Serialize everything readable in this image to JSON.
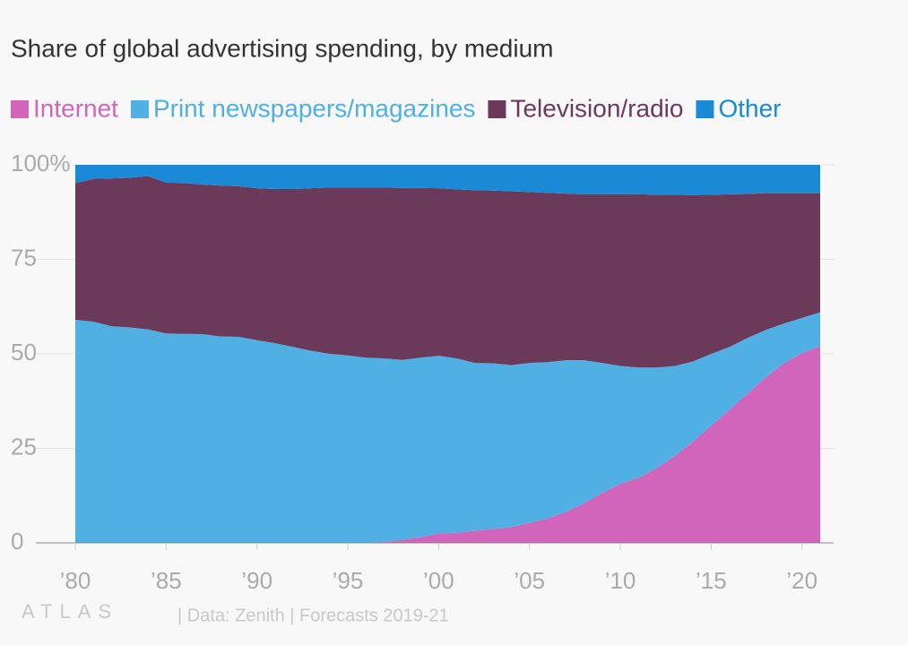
{
  "chart_data": {
    "type": "stacked-area",
    "title": "Share of global advertising spending, by medium",
    "x": [
      1980,
      1981,
      1982,
      1983,
      1984,
      1985,
      1986,
      1987,
      1988,
      1989,
      1990,
      1991,
      1992,
      1993,
      1994,
      1995,
      1996,
      1997,
      1998,
      1999,
      2000,
      2001,
      2002,
      2003,
      2004,
      2005,
      2006,
      2007,
      2008,
      2009,
      2010,
      2011,
      2012,
      2013,
      2014,
      2015,
      2016,
      2017,
      2018,
      2019,
      2020,
      2021
    ],
    "series": [
      {
        "name": "Internet",
        "color": "#d065bb",
        "values": [
          0,
          0,
          0,
          0,
          0,
          0,
          0,
          0,
          0,
          0,
          0,
          0,
          0,
          0,
          0,
          0,
          0,
          0.3,
          0.8,
          1.5,
          2.5,
          2.7,
          3.2,
          3.7,
          4.2,
          5.3,
          6.5,
          8.2,
          10.5,
          13.2,
          15.6,
          17.2,
          19.8,
          23,
          26.8,
          31,
          35.2,
          39.5,
          43.8,
          47.5,
          50.2,
          52
        ]
      },
      {
        "name": "Print newspapers/magazines",
        "color": "#50b0e4",
        "values": [
          59,
          58.5,
          57.3,
          57,
          56.5,
          55.4,
          55.3,
          55.2,
          54.6,
          54.5,
          53.6,
          52.8,
          51.8,
          50.8,
          50,
          49.6,
          49,
          48.5,
          47.6,
          47.5,
          47,
          46.1,
          44.4,
          43.8,
          42.8,
          42.3,
          41.3,
          40.1,
          37.8,
          34.4,
          31.2,
          29.2,
          26.6,
          23.8,
          21.2,
          19,
          16.6,
          14.7,
          12.5,
          10.5,
          9.3,
          9
        ]
      },
      {
        "name": "Television/radio",
        "color": "#6b3a5a",
        "values": [
          36.2,
          37.8,
          39.1,
          39.6,
          40.5,
          39.9,
          39.9,
          39.6,
          39.9,
          39.8,
          40.2,
          40.8,
          41.8,
          43,
          44,
          44.4,
          45,
          45.2,
          45.5,
          44.9,
          44.3,
          44.7,
          45.7,
          45.7,
          46,
          45.2,
          44.8,
          44.1,
          43.9,
          44.6,
          45.4,
          45.8,
          45.7,
          45.3,
          44,
          42.1,
          40.4,
          38.1,
          36.2,
          34.5,
          33,
          31.5
        ]
      },
      {
        "name": "Other",
        "color": "#1a8ad6",
        "values": [
          4.8,
          3.7,
          3.6,
          3.4,
          3,
          4.7,
          4.8,
          5.2,
          5.5,
          5.7,
          6.2,
          6.4,
          6.4,
          6.2,
          6,
          6,
          6,
          6,
          6.1,
          6.1,
          6.2,
          6.5,
          6.7,
          6.8,
          7,
          7.2,
          7.4,
          7.6,
          7.8,
          7.8,
          7.8,
          7.8,
          7.9,
          7.9,
          8,
          7.9,
          7.8,
          7.7,
          7.5,
          7.5,
          7.5,
          7.5
        ]
      }
    ],
    "xlim": [
      1980,
      2021
    ],
    "xticks": [
      {
        "value": 1980,
        "label": "’80"
      },
      {
        "value": 1985,
        "label": "’85"
      },
      {
        "value": 1990,
        "label": "’90"
      },
      {
        "value": 1995,
        "label": "’95"
      },
      {
        "value": 2000,
        "label": "’00"
      },
      {
        "value": 2005,
        "label": "’05"
      },
      {
        "value": 2010,
        "label": "’10"
      },
      {
        "value": 2015,
        "label": "’15"
      },
      {
        "value": 2020,
        "label": "’20"
      }
    ],
    "ylim": [
      0,
      100
    ],
    "yticks": [
      0,
      25,
      50,
      75,
      {
        "value": 100,
        "label": "100%"
      }
    ],
    "grid": true,
    "logo": "ATLAS",
    "source": "| Data: Zenith | Forecasts 2019-21"
  }
}
